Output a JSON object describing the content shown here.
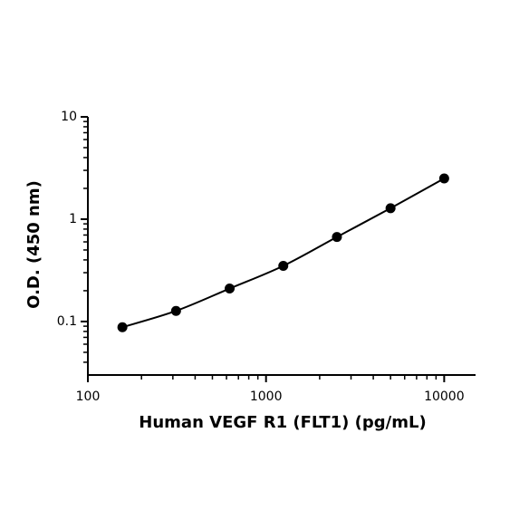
{
  "chart_data": {
    "type": "line",
    "x_label": "Human VEGF R1 (FLT1) (pg/mL)",
    "y_label": "O.D. (450 nm)",
    "x_scale": "log",
    "y_scale": "log",
    "xlim": [
      100,
      15000
    ],
    "ylim": [
      0.03,
      10
    ],
    "xticks": [
      100,
      1000,
      10000
    ],
    "yticks": [
      0.1,
      1,
      10
    ],
    "xminorticks": [
      200,
      300,
      400,
      500,
      600,
      700,
      800,
      900,
      2000,
      3000,
      4000,
      5000,
      6000,
      7000,
      8000,
      9000
    ],
    "yminorticks": [
      0.04,
      0.05,
      0.06,
      0.07,
      0.08,
      0.09,
      0.2,
      0.3,
      0.4,
      0.5,
      0.6,
      0.7,
      0.8,
      0.9,
      2,
      3,
      4,
      5,
      6,
      7,
      8,
      9
    ],
    "markers": true,
    "series": [
      {
        "color": "#000000",
        "x": [
          156.25,
          312.5,
          625,
          1250,
          2500,
          5000,
          10000
        ],
        "values": [
          0.088,
          0.127,
          0.21,
          0.35,
          0.67,
          1.28,
          2.5
        ]
      }
    ]
  }
}
